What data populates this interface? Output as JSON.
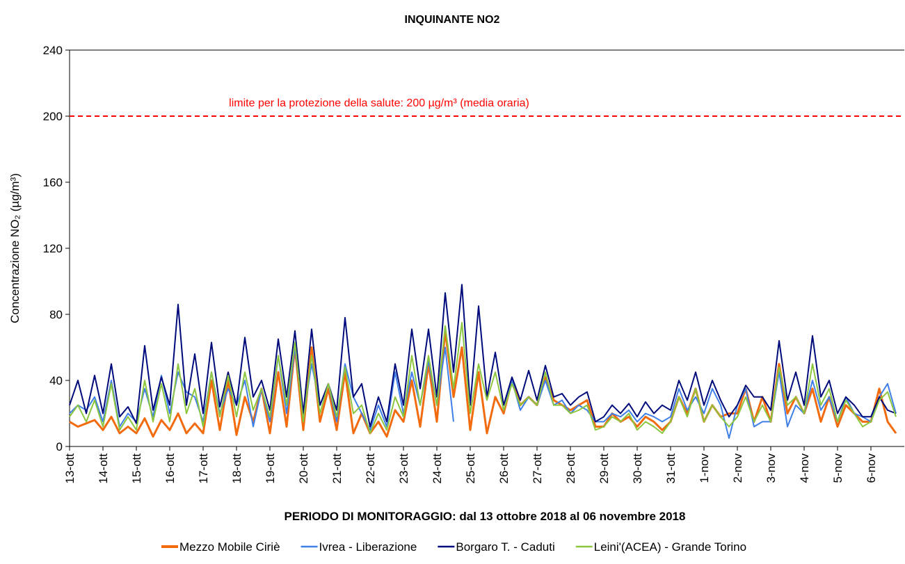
{
  "chart_data": {
    "type": "line",
    "title": "INQUINANTE NO2",
    "y_label": "Concentrazione NO₂ (µg/m³)",
    "x_label": "PERIODO DI MONITORAGGIO: dal 13 ottobre 2018 al 06 novembre 2018",
    "categories": [
      "13-ott",
      null,
      null,
      null,
      "14-ott",
      null,
      null,
      null,
      "15-ott",
      null,
      null,
      null,
      "16-ott",
      null,
      null,
      null,
      "17-ott",
      null,
      null,
      null,
      "18-ott",
      null,
      null,
      null,
      "19-ott",
      null,
      null,
      null,
      "20-ott",
      null,
      null,
      null,
      "21-ott",
      null,
      null,
      null,
      "22-ott",
      null,
      null,
      null,
      "23-ott",
      null,
      null,
      null,
      "24-ott",
      null,
      null,
      null,
      "25-ott",
      null,
      null,
      null,
      "26-ott",
      null,
      null,
      null,
      "27-ott",
      null,
      null,
      null,
      "28-ott",
      null,
      null,
      null,
      "29-ott",
      null,
      null,
      null,
      "30-ott",
      null,
      null,
      null,
      "31-ott",
      null,
      null,
      null,
      "1-nov",
      null,
      null,
      null,
      "2-nov",
      null,
      null,
      null,
      "3-nov",
      null,
      null,
      null,
      "4-nov",
      null,
      null,
      null,
      "5-nov",
      null,
      null,
      null,
      "6-nov",
      null,
      null,
      null
    ],
    "series": [
      {
        "name": "Mezzo Mobile Ciriè",
        "color": "#f26b0f",
        "width": 3,
        "values": [
          15,
          12,
          14,
          16,
          10,
          18,
          8,
          12,
          8,
          17,
          6,
          16,
          10,
          20,
          8,
          14,
          8,
          40,
          10,
          40,
          7,
          30,
          15,
          35,
          8,
          45,
          12,
          60,
          10,
          60,
          15,
          35,
          10,
          45,
          8,
          20,
          8,
          15,
          6,
          22,
          15,
          40,
          12,
          50,
          15,
          70,
          30,
          60,
          10,
          45,
          8,
          30,
          20,
          40,
          25,
          30,
          25,
          42,
          28,
          25,
          22,
          25,
          28,
          12,
          12,
          20,
          15,
          18,
          12,
          18,
          15,
          10,
          15,
          30,
          20,
          35,
          15,
          25,
          18,
          20,
          20,
          35,
          15,
          30,
          15,
          50,
          20,
          30,
          20,
          35,
          15,
          30,
          12,
          25,
          20,
          15,
          15,
          35,
          15,
          8
        ]
      },
      {
        "name": "Ivrea - Liberazione",
        "color": "#3f7fe8",
        "width": 2,
        "values": [
          20,
          25,
          22,
          30,
          15,
          40,
          12,
          20,
          15,
          35,
          18,
          43,
          20,
          45,
          33,
          30,
          15,
          45,
          20,
          35,
          25,
          40,
          12,
          35,
          15,
          55,
          20,
          60,
          18,
          50,
          25,
          38,
          15,
          50,
          30,
          20,
          10,
          25,
          12,
          45,
          20,
          45,
          25,
          52,
          25,
          60,
          15,
          null,
          null,
          null,
          null,
          null,
          25,
          40,
          22,
          30,
          25,
          40,
          25,
          28,
          20,
          25,
          22,
          15,
          15,
          20,
          18,
          22,
          15,
          20,
          18,
          15,
          18,
          35,
          22,
          30,
          20,
          35,
          25,
          5,
          25,
          35,
          12,
          15,
          15,
          45,
          12,
          25,
          20,
          40,
          22,
          30,
          15,
          30,
          20,
          18,
          15,
          30,
          38,
          20
        ]
      },
      {
        "name": "Borgaro T. - Caduti",
        "color": "#000a7a",
        "width": 2,
        "values": [
          25,
          40,
          20,
          43,
          20,
          50,
          18,
          24,
          14,
          61,
          22,
          42,
          25,
          86,
          25,
          56,
          20,
          63,
          24,
          45,
          25,
          66,
          30,
          40,
          22,
          65,
          30,
          70,
          20,
          71,
          25,
          38,
          22,
          78,
          30,
          38,
          12,
          30,
          15,
          50,
          25,
          71,
          35,
          71,
          30,
          93,
          45,
          98,
          25,
          85,
          30,
          57,
          25,
          42,
          28,
          46,
          28,
          49,
          30,
          32,
          25,
          30,
          33,
          15,
          18,
          25,
          20,
          26,
          18,
          27,
          20,
          25,
          22,
          40,
          28,
          45,
          25,
          40,
          28,
          18,
          25,
          37,
          30,
          30,
          22,
          64,
          28,
          45,
          25,
          67,
          30,
          40,
          20,
          30,
          25,
          18,
          18,
          30,
          22,
          20
        ]
      },
      {
        "name": "Leini'(ACEA) - Grande Torino",
        "color": "#8cc63f",
        "width": 2,
        "values": [
          18,
          25,
          15,
          28,
          12,
          38,
          10,
          18,
          10,
          40,
          15,
          38,
          15,
          50,
          20,
          35,
          12,
          45,
          18,
          43,
          18,
          45,
          22,
          35,
          18,
          55,
          25,
          63,
          15,
          55,
          20,
          38,
          18,
          48,
          20,
          25,
          8,
          20,
          10,
          30,
          18,
          55,
          25,
          55,
          25,
          73,
          35,
          75,
          20,
          50,
          28,
          45,
          22,
          38,
          25,
          30,
          25,
          45,
          25,
          25,
          20,
          22,
          25,
          10,
          12,
          18,
          15,
          20,
          10,
          15,
          12,
          8,
          15,
          30,
          18,
          35,
          15,
          25,
          18,
          12,
          18,
          30,
          15,
          25,
          15,
          48,
          25,
          30,
          20,
          50,
          25,
          35,
          15,
          28,
          20,
          12,
          15,
          28,
          33,
          18
        ]
      }
    ],
    "threshold": {
      "value": 200,
      "label": "limite per la protezione della salute: 200  µg/m³ (media oraria)",
      "color": "#ff0000"
    },
    "ylim": [
      0,
      240
    ],
    "yticks": [
      0,
      40,
      80,
      120,
      160,
      200,
      240
    ]
  }
}
